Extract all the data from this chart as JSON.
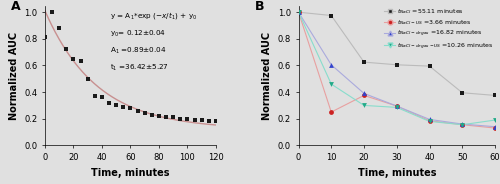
{
  "panel_A": {
    "scatter_x": [
      0,
      5,
      10,
      15,
      20,
      25,
      30,
      35,
      40,
      45,
      50,
      55,
      60,
      65,
      70,
      75,
      80,
      85,
      90,
      95,
      100,
      105,
      110,
      115,
      120
    ],
    "scatter_y": [
      0.81,
      1.0,
      0.88,
      0.72,
      0.65,
      0.63,
      0.5,
      0.37,
      0.36,
      0.32,
      0.3,
      0.29,
      0.28,
      0.26,
      0.24,
      0.23,
      0.22,
      0.21,
      0.21,
      0.2,
      0.2,
      0.19,
      0.19,
      0.18,
      0.18
    ],
    "fit_y0": 0.12,
    "fit_A1": 0.89,
    "fit_t1": 36.42,
    "scatter_color": "#1a1a1a",
    "fit_color": "#c89090",
    "xlabel": "Time, minutes",
    "ylabel": "Normalized AUC",
    "xlim": [
      0,
      120
    ],
    "ylim": [
      0.0,
      1.05
    ],
    "xticks": [
      0,
      20,
      40,
      60,
      80,
      100,
      120
    ],
    "yticks": [
      0.0,
      0.2,
      0.4,
      0.6,
      0.8,
      1.0
    ]
  },
  "panel_B": {
    "NaCl_x": [
      0,
      10,
      20,
      30,
      40,
      50,
      60
    ],
    "NaCl_y": [
      1.0,
      0.975,
      0.625,
      0.605,
      0.595,
      0.395,
      0.375
    ],
    "NaCl_US_x": [
      0,
      10,
      20,
      30,
      40,
      50,
      60
    ],
    "NaCl_US_y": [
      1.0,
      0.25,
      0.375,
      0.295,
      0.185,
      0.155,
      0.13
    ],
    "NaCl_degas_x": [
      0,
      10,
      20,
      30,
      40,
      50,
      60
    ],
    "NaCl_degas_y": [
      1.0,
      0.605,
      0.39,
      0.295,
      0.195,
      0.16,
      0.14
    ],
    "NaCl_degas_US_x": [
      0,
      10,
      20,
      30,
      40,
      50,
      60
    ],
    "NaCl_degas_US_y": [
      1.0,
      0.46,
      0.3,
      0.285,
      0.18,
      0.155,
      0.19
    ],
    "NaCl_color": "#1a1a1a",
    "NaCl_US_color": "#cc2222",
    "NaCl_degas_color": "#3344cc",
    "NaCl_degas_US_color": "#22aa88",
    "NaCl_line_color": "#bbbbbb",
    "NaCl_US_line_color": "#e8a0a0",
    "NaCl_degas_line_color": "#aaaadd",
    "NaCl_degas_US_line_color": "#88ddcc",
    "xlabel": "Time, minutes",
    "ylabel": "Normalized AUC",
    "xlim": [
      0,
      60
    ],
    "ylim": [
      0.0,
      1.05
    ],
    "xticks": [
      0,
      10,
      20,
      30,
      40,
      50,
      60
    ],
    "yticks": [
      0.0,
      0.2,
      0.4,
      0.6,
      0.8,
      1.0
    ]
  },
  "fig_bg": "#e0e0e0",
  "axes_bg": "#e0e0e0"
}
